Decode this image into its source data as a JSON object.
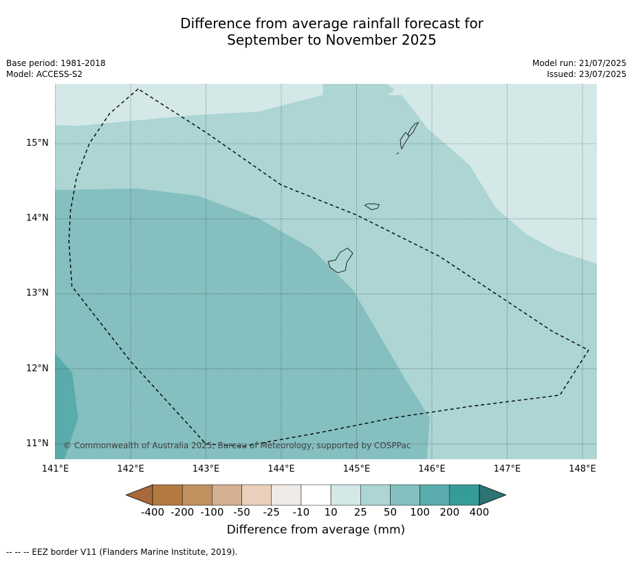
{
  "title": {
    "line1": "Difference from average rainfall forecast for",
    "line2": "September to November 2025"
  },
  "meta": {
    "base_period": "Base period: 1981-2018",
    "model": "Model: ACCESS-S2",
    "model_run": "Model run: 21/07/2025",
    "issued": "Issued: 23/07/2025"
  },
  "map": {
    "lon_range": [
      141.0,
      148.2
    ],
    "lat_range": [
      10.8,
      15.8
    ],
    "lat_ticks": [
      {
        "value": 15,
        "label": "15°N"
      },
      {
        "value": 14,
        "label": "14°N"
      },
      {
        "value": 13,
        "label": "13°N"
      },
      {
        "value": 12,
        "label": "12°N"
      },
      {
        "value": 11,
        "label": "11°N"
      }
    ],
    "lon_ticks": [
      {
        "value": 141,
        "label": "141°E"
      },
      {
        "value": 142,
        "label": "142°E"
      },
      {
        "value": 143,
        "label": "143°E"
      },
      {
        "value": 144,
        "label": "144°E"
      },
      {
        "value": 145,
        "label": "145°E"
      },
      {
        "value": 146,
        "label": "146°E"
      },
      {
        "value": 147,
        "label": "147°E"
      },
      {
        "value": 148,
        "label": "148°E"
      }
    ],
    "grid": true,
    "regions": [
      {
        "category": "25 to 50",
        "color": "#acd5d4",
        "polygon": [
          [
            141,
            15.8
          ],
          [
            148.2,
            15.8
          ],
          [
            148.2,
            10.8
          ],
          [
            141,
            10.8
          ]
        ]
      },
      {
        "category": "10 to 25",
        "color": "#d4e8e8",
        "polygon": [
          [
            141,
            15.8
          ],
          [
            144.55,
            15.8
          ],
          [
            144.55,
            15.65
          ],
          [
            143.7,
            15.43
          ],
          [
            142.8,
            15.38
          ],
          [
            141.3,
            15.24
          ],
          [
            141,
            15.25
          ]
        ]
      },
      {
        "category": "10 to 25",
        "color": "#d4e8e8",
        "polygon": [
          [
            145.4,
            15.8
          ],
          [
            148.2,
            15.8
          ],
          [
            148.2,
            15.35
          ],
          [
            147.9,
            15.5
          ],
          [
            147.6,
            15.75
          ],
          [
            145.6,
            15.65
          ]
        ]
      },
      {
        "category": "10 to 25",
        "color": "#d4e8e8",
        "polygon": [
          [
            145.42,
            15.65
          ],
          [
            145.6,
            15.65
          ],
          [
            145.95,
            15.2
          ],
          [
            146.5,
            14.72
          ],
          [
            146.85,
            14.15
          ],
          [
            147.25,
            13.8
          ],
          [
            147.65,
            13.58
          ],
          [
            148.2,
            13.4
          ],
          [
            148.2,
            15.35
          ],
          [
            147.9,
            15.5
          ],
          [
            147.6,
            15.75
          ],
          [
            145.55,
            15.75
          ]
        ]
      },
      {
        "category": "50 to 100",
        "color": "#85bfbf",
        "polygon": [
          [
            141,
            14.38
          ],
          [
            142.1,
            14.4
          ],
          [
            142.9,
            14.3
          ],
          [
            143.7,
            14.0
          ],
          [
            144.4,
            13.6
          ],
          [
            144.95,
            13.05
          ],
          [
            145.3,
            12.45
          ],
          [
            145.65,
            11.85
          ],
          [
            145.97,
            11.35
          ],
          [
            145.93,
            10.8
          ],
          [
            141,
            10.8
          ]
        ]
      },
      {
        "category": "100 to 200",
        "color": "#5aabab",
        "polygon": [
          [
            141,
            12.2
          ],
          [
            141.22,
            11.95
          ],
          [
            141.3,
            11.35
          ],
          [
            141.12,
            10.8
          ],
          [
            141,
            10.8
          ]
        ]
      }
    ],
    "eez_border": [
      [
        142.1,
        15.73
      ],
      [
        141.72,
        15.4
      ],
      [
        141.45,
        15.0
      ],
      [
        141.28,
        14.55
      ],
      [
        141.2,
        14.1
      ],
      [
        141.18,
        13.7
      ],
      [
        141.22,
        13.1
      ],
      [
        142.0,
        12.1
      ],
      [
        143.0,
        11.0
      ],
      [
        143.5,
        10.97
      ],
      [
        144.5,
        11.15
      ],
      [
        145.5,
        11.35
      ],
      [
        146.5,
        11.5
      ],
      [
        147.7,
        11.65
      ],
      [
        148.08,
        12.25
      ],
      [
        147.6,
        12.5
      ],
      [
        146.1,
        13.5
      ],
      [
        145.0,
        14.05
      ],
      [
        144.0,
        14.45
      ],
      [
        143.0,
        15.15
      ],
      [
        142.1,
        15.73
      ]
    ],
    "islands": [
      [
        [
          144.65,
          13.35
        ],
        [
          144.75,
          13.28
        ],
        [
          144.85,
          13.31
        ],
        [
          144.87,
          13.42
        ],
        [
          144.95,
          13.54
        ],
        [
          144.88,
          13.61
        ],
        [
          144.78,
          13.55
        ],
        [
          144.72,
          13.45
        ],
        [
          144.62,
          13.43
        ]
      ],
      [
        [
          145.11,
          14.18
        ],
        [
          145.2,
          14.12
        ],
        [
          145.28,
          14.14
        ],
        [
          145.3,
          14.19
        ],
        [
          145.22,
          14.2
        ],
        [
          145.15,
          14.2
        ]
      ],
      [
        [
          145.6,
          14.93
        ],
        [
          145.63,
          14.99
        ],
        [
          145.7,
          15.1
        ],
        [
          145.65,
          15.15
        ],
        [
          145.58,
          15.05
        ],
        [
          145.59,
          14.96
        ]
      ],
      [
        [
          145.7,
          15.1
        ],
        [
          145.75,
          15.15
        ],
        [
          145.8,
          15.25
        ],
        [
          145.82,
          15.28
        ],
        [
          145.78,
          15.27
        ],
        [
          145.72,
          15.2
        ],
        [
          145.68,
          15.12
        ]
      ],
      [
        [
          145.56,
          14.88
        ],
        [
          145.53,
          14.86
        ]
      ]
    ]
  },
  "copyright": "© Commonwealth of Australia 2025, Bureau of Meteorology, supported by COSPPac",
  "colorbar": {
    "label": "Difference from average (mm)",
    "ticks": [
      "-400",
      "-200",
      "-100",
      "-50",
      "-25",
      "-10",
      "10",
      "25",
      "50",
      "100",
      "200",
      "400"
    ],
    "colors": [
      "#a8683a",
      "#b27a41",
      "#c0905f",
      "#d5b090",
      "#e8d0bd",
      "#efeae6",
      "#ffffff",
      "#d4e8e8",
      "#acd5d4",
      "#85bfbf",
      "#5aabab",
      "#359c9a",
      "#2c7473"
    ]
  },
  "footnote": "-- -- -- EEZ border V11 (Flanders Marine Institute, 2019)."
}
